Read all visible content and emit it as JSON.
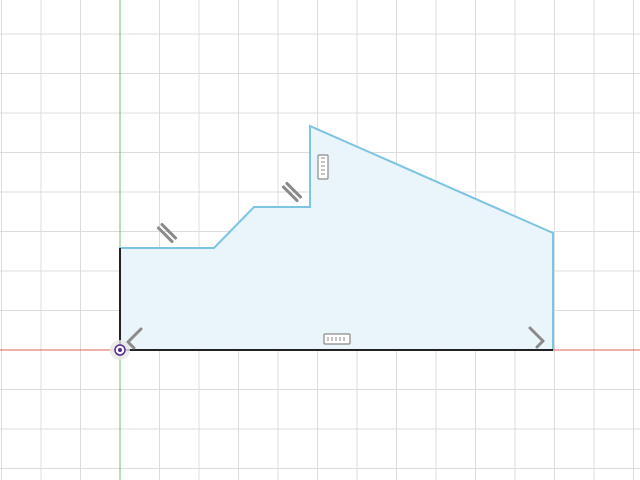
{
  "viewport": {
    "background": "#ffffff",
    "grid_color": "#dcdcdc",
    "grid_major_color": "#cfcfcf",
    "x_axis_color": "#e0605a",
    "y_axis_color": "#6cc26c"
  },
  "sketch": {
    "profile_fill": "#eaf4fb",
    "profile_stroke": "#7cc4e4",
    "fixed_line_color": "#222222",
    "constraint_icon_color": "#8a8a8a",
    "origin_color": "#5a2a8a",
    "constraints": [
      {
        "type": "parallel",
        "icon": "parallel-constraint-icon"
      },
      {
        "type": "parallel",
        "icon": "parallel-constraint-icon"
      },
      {
        "type": "vertical",
        "icon": "vertical-constraint-icon"
      },
      {
        "type": "horizontal",
        "icon": "horizontal-constraint-icon"
      },
      {
        "type": "perpendicular",
        "icon": "perpendicular-constraint-icon"
      },
      {
        "type": "perpendicular",
        "icon": "perpendicular-constraint-icon"
      }
    ]
  }
}
